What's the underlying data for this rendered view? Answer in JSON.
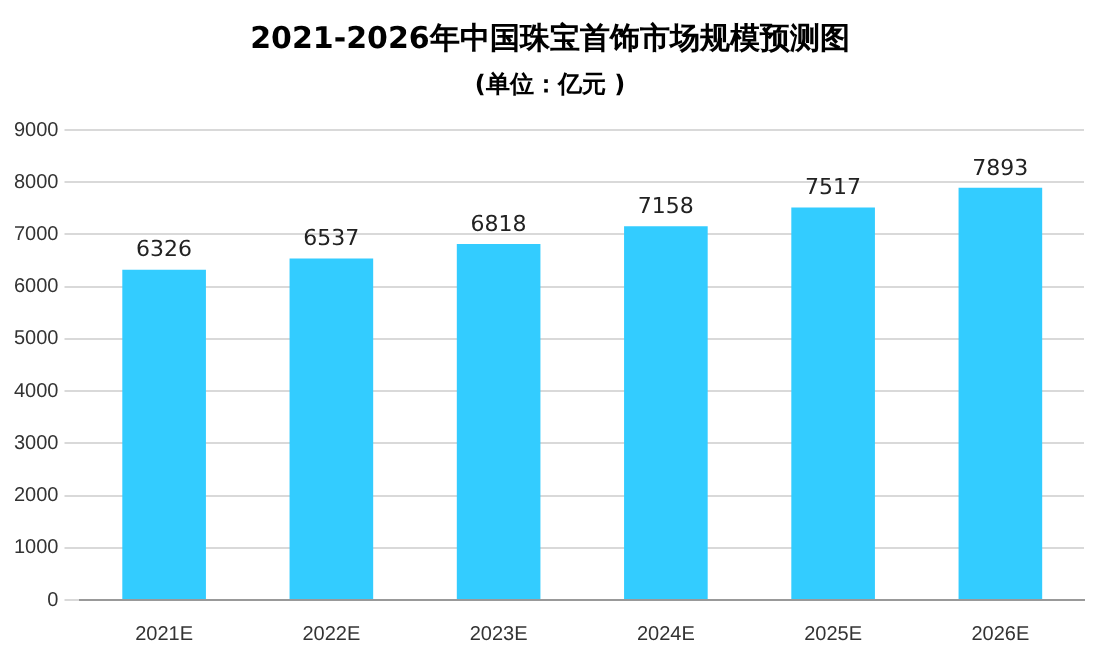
{
  "chart_data": {
    "type": "bar",
    "title": "2021-2026年中国珠宝首饰市场规模预测图",
    "subtitle": "(单位：亿元 )",
    "categories": [
      "2021E",
      "2022E",
      "2023E",
      "2024E",
      "2025E",
      "2026E"
    ],
    "values": [
      6326,
      6537,
      6818,
      7158,
      7517,
      7893
    ],
    "color": "#33ccff",
    "ylim": [
      0,
      9000
    ],
    "yticks": [
      0,
      1000,
      2000,
      3000,
      4000,
      5000,
      6000,
      7000,
      8000,
      9000
    ],
    "grid": "y",
    "data_labels": true
  }
}
